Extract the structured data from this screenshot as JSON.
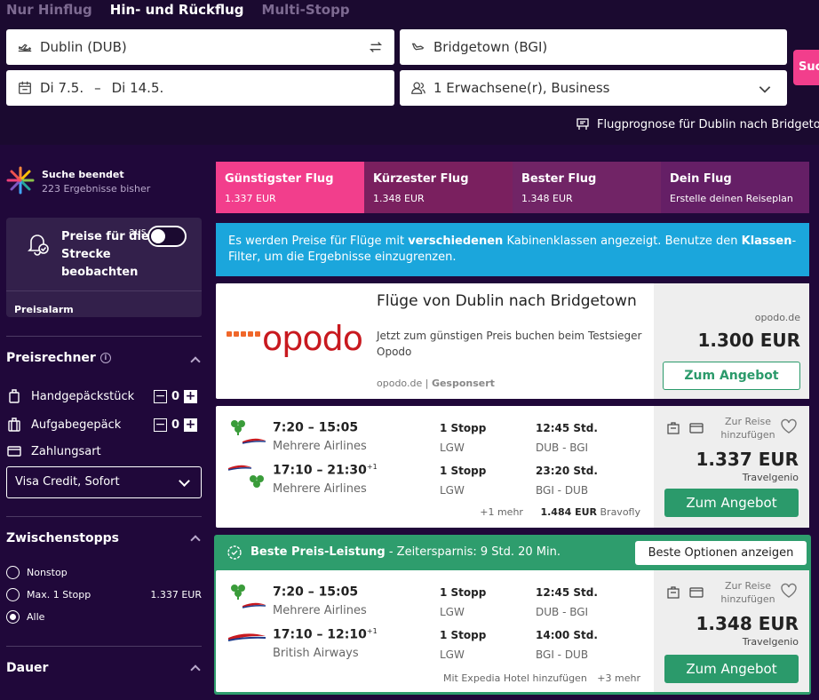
{
  "tabs": [
    "Nur Hinflug",
    "Hin- und Rückflug",
    "Multi-Stopp"
  ],
  "search": {
    "origin": "Dublin (DUB)",
    "destination": "Bridgetown (BGI)",
    "date_from": "Di 7.5.",
    "date_sep": "–",
    "date_to": "Di 14.5.",
    "passengers": "1 Erwachsene(r), Business",
    "button": "Suche",
    "forecast": "Flugprognose für Dublin nach Bridgetown"
  },
  "sidebar": {
    "status_title": "Suche beendet",
    "status_sub": "223 Ergebnisse bisher",
    "alert_text": "Preise für diese Strecke beobachten",
    "alert_label": "Preisalarm",
    "toggle_state": "aus",
    "calc_title": "Preisrechner",
    "info": "i",
    "hand_bag": "Handgepäckstück",
    "hand_count": "0",
    "check_bag": "Aufgabegepäck",
    "check_count": "0",
    "minus": "−",
    "plus": "+",
    "payment_label": "Zahlungsart",
    "payment_value": "Visa Credit, Sofort",
    "stops_title": "Zwischenstopps",
    "stop_options": [
      {
        "label": "Nonstop",
        "price": ""
      },
      {
        "label": "Max. 1 Stopp",
        "price": "1.337 EUR"
      },
      {
        "label": "Alle",
        "price": ""
      }
    ],
    "duration_title": "Dauer"
  },
  "sort_tabs": [
    {
      "label": "Günstigster Flug",
      "value": "1.337 EUR"
    },
    {
      "label": "Kürzester Flug",
      "value": "1.348 EUR"
    },
    {
      "label": "Bester Flug",
      "value": "1.348 EUR"
    },
    {
      "label": "Dein Flug",
      "value": "Erstelle deinen Reiseplan"
    }
  ],
  "banner": {
    "part1": "Es werden Preise für Flüge mit ",
    "bold1": "verschiedenen",
    "part2": " Kabinenklassen angezeigt. Benutze den ",
    "bold2": "Klassen",
    "part3": "-Filter, um die Ergebnisse einzugrenzen."
  },
  "ad": {
    "brand": "opodo",
    "title": "Flüge von Dublin nach Bridgetown",
    "desc": "Jetzt zum günstigen Preis buchen beim Testsieger Opodo",
    "source": "opodo.de",
    "sep": "|",
    "sponsored": "Gesponsert",
    "domain": "opodo.de",
    "price": "1.300 EUR",
    "button": "Zum Angebot"
  },
  "result1": {
    "legs": [
      {
        "times": "7:20 – 15:05",
        "plus_day": "",
        "carrier": "Mehrere Airlines",
        "stops": "1 Stopp",
        "via": "LGW",
        "duration": "12:45 Std.",
        "route": "DUB - BGI"
      },
      {
        "times": "17:10 – 21:30",
        "plus_day": "+1",
        "carrier": "Mehrere Airlines",
        "stops": "1 Stopp",
        "via": "LGW",
        "duration": "23:20 Std.",
        "route": "BGI - DUB"
      }
    ],
    "more": "+1 mehr",
    "alt_price": "1.484 EUR",
    "alt_provider": "Bravofly",
    "fav": "Zur Reise hinzufügen",
    "price": "1.337 EUR",
    "provider": "Travelgenio",
    "button": "Zum Angebot"
  },
  "best": {
    "label": "Beste Preis-Leistung",
    "saving": " - Zeitersparnis: 9 Std. 20 Min.",
    "button": "Beste Optionen anzeigen"
  },
  "result2": {
    "legs": [
      {
        "times": "7:20 – 15:05",
        "plus_day": "",
        "carrier": "Mehrere Airlines",
        "stops": "1 Stopp",
        "via": "LGW",
        "duration": "12:45 Std.",
        "route": "DUB - BGI"
      },
      {
        "times": "17:10 – 12:10",
        "plus_day": "+1",
        "carrier": "British Airways",
        "stops": "1 Stopp",
        "via": "LGW",
        "duration": "14:00 Std.",
        "route": "BGI - DUB"
      }
    ],
    "hotel": "Mit Expedia Hotel hinzufügen",
    "more": "+3 mehr",
    "fav": "Zur Reise hinzufügen",
    "price": "1.348 EUR",
    "provider": "Travelgenio",
    "button": "Zum Angebot"
  }
}
